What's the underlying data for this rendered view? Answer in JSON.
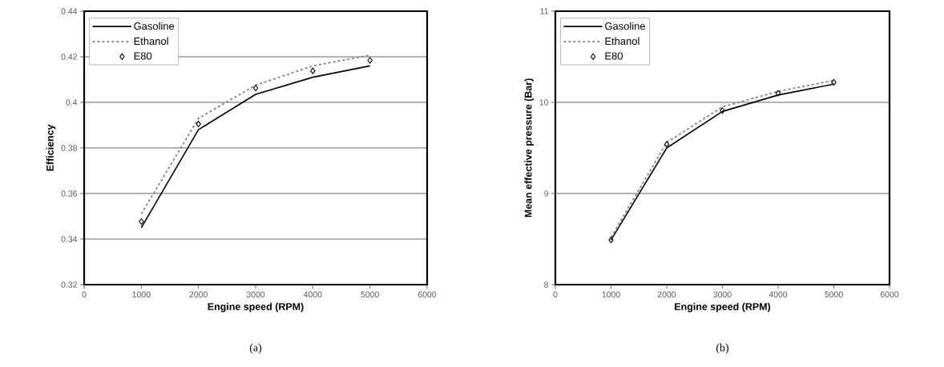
{
  "chart_data": [
    {
      "type": "line",
      "xlabel": "Engine speed (RPM)",
      "ylabel": "Efficiency",
      "annotations": [
        "(a)"
      ],
      "x": [
        1000,
        2000,
        3000,
        4000,
        5000
      ],
      "xlim": [
        0,
        6000
      ],
      "xticks": [
        0,
        1000,
        2000,
        3000,
        4000,
        5000,
        6000
      ],
      "ylim": [
        0.32,
        0.44
      ],
      "yticks": [
        0.32,
        0.34,
        0.36,
        0.38,
        0.4,
        0.42,
        0.44
      ],
      "grid": "y",
      "legend": "top left",
      "series": [
        {
          "name": "Gasoline",
          "type": "line",
          "color": "#000000",
          "line_style": "solid",
          "marker": "none",
          "values": [
            0.345,
            0.388,
            0.4035,
            0.411,
            0.416
          ]
        },
        {
          "name": "Ethanol",
          "type": "line",
          "color": "#808080",
          "line_style": "dashed",
          "marker": "none",
          "values": [
            0.351,
            0.393,
            0.4075,
            0.416,
            0.4207
          ]
        },
        {
          "name": "E80",
          "type": "scatter",
          "color": "#000000",
          "marker": "diamond",
          "values": [
            0.3477,
            0.3905,
            0.4063,
            0.4138,
            0.4184
          ]
        }
      ]
    },
    {
      "type": "line",
      "xlabel": "Engine speed (RPM)",
      "ylabel": "Mean effective pressure (Bar)",
      "annotations": [
        "(b)"
      ],
      "x": [
        1000,
        2000,
        3000,
        4000,
        5000
      ],
      "xlim": [
        0,
        6000
      ],
      "xticks": [
        0,
        1000,
        2000,
        3000,
        4000,
        5000,
        6000
      ],
      "ylim": [
        8,
        11
      ],
      "yticks": [
        8,
        9,
        10,
        11
      ],
      "grid": "y",
      "legend": "top left",
      "series": [
        {
          "name": "Gasoline",
          "type": "line",
          "color": "#000000",
          "line_style": "solid",
          "marker": "none",
          "values": [
            8.49,
            9.5,
            9.9,
            10.08,
            10.2
          ]
        },
        {
          "name": "Ethanol",
          "type": "line",
          "color": "#808080",
          "line_style": "dashed",
          "marker": "none",
          "values": [
            8.52,
            9.56,
            9.95,
            10.12,
            10.24
          ]
        },
        {
          "name": "E80",
          "type": "scatter",
          "color": "#000000",
          "marker": "diamond",
          "values": [
            8.49,
            9.54,
            9.91,
            10.1,
            10.22
          ]
        }
      ]
    }
  ]
}
